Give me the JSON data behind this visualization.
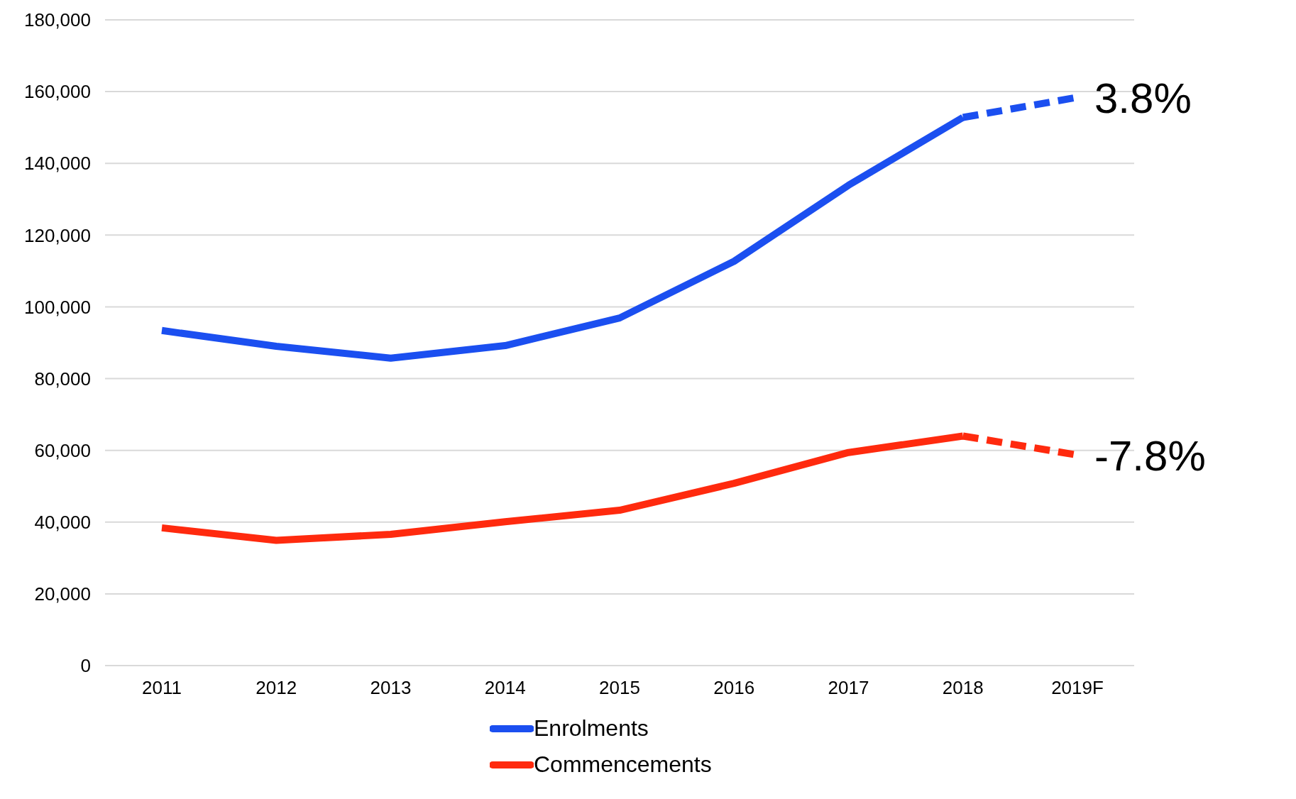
{
  "chart_data": {
    "type": "line",
    "categories": [
      "2011",
      "2012",
      "2013",
      "2014",
      "2015",
      "2016",
      "2017",
      "2018",
      "2019F"
    ],
    "series": [
      {
        "name": "Enrolments",
        "color": "#1b4ff0",
        "values": [
          93400,
          89000,
          85700,
          89200,
          96900,
          112700,
          133900,
          152800,
          null
        ],
        "line_style": "solid"
      },
      {
        "name": "Commencements",
        "color": "#ff2a0e",
        "values": [
          38400,
          34900,
          36600,
          40100,
          43300,
          50800,
          59400,
          64000,
          null
        ],
        "line_style": "solid"
      },
      {
        "color": "#1b4ff0",
        "values": [
          null,
          null,
          null,
          null,
          null,
          null,
          null,
          152800,
          158400
        ],
        "line_style": "dashed"
      },
      {
        "color": "#ff2a0e",
        "values": [
          null,
          null,
          null,
          null,
          null,
          null,
          null,
          64000,
          58700
        ],
        "line_style": "dashed"
      }
    ],
    "ylim": [
      0,
      180000
    ],
    "yticks": [
      0,
      {
        "value": 20000,
        "label": "20,000"
      },
      {
        "value": 40000,
        "label": "40,000"
      },
      {
        "value": 60000,
        "label": "60,000"
      },
      {
        "value": 80000,
        "label": "80,000"
      },
      {
        "value": 100000,
        "label": "100,000"
      },
      {
        "value": 120000,
        "label": "120,000"
      },
      {
        "value": 140000,
        "label": "140,000"
      },
      {
        "value": 160000,
        "label": "160,000"
      },
      {
        "value": 180000,
        "label": "180,000"
      }
    ],
    "grid": "y",
    "legend": "bottom",
    "marker": "none",
    "annotations": [
      {
        "text": "3.8%",
        "x": "2019F",
        "y": 158400
      },
      {
        "text": "-7.8%",
        "x": "2019F",
        "y": 58700
      }
    ]
  }
}
